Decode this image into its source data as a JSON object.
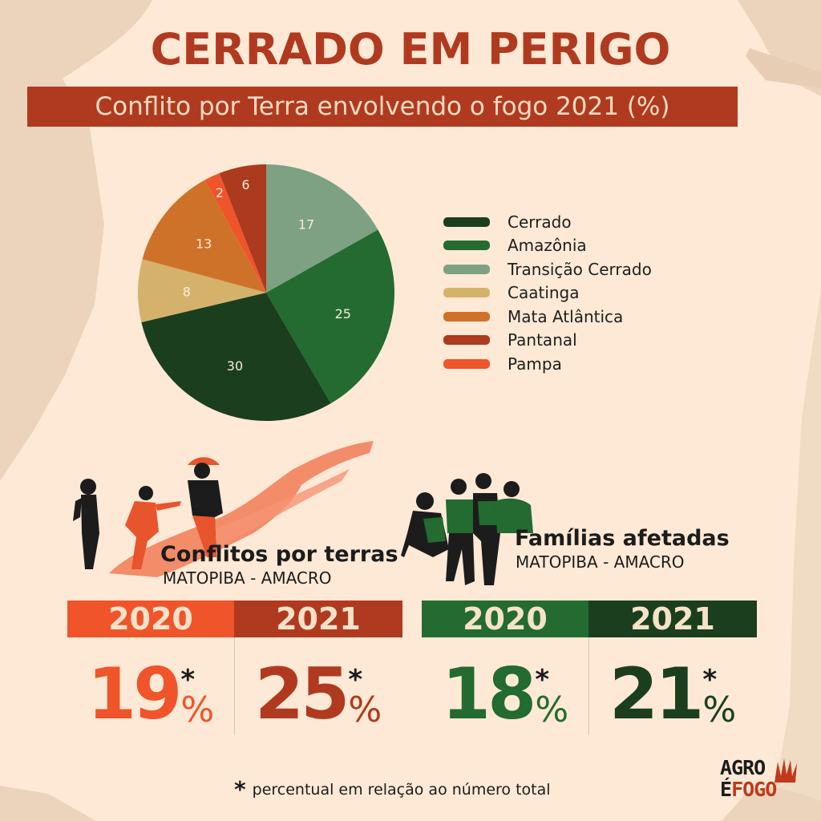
{
  "header": {
    "title": "CERRADO EM PERIGO",
    "subtitle": "Conflito por Terra envolvendo o fogo 2021 (%)"
  },
  "colors": {
    "background": "#fde9d5",
    "background_patch": "#ecd4bc",
    "title_red": "#b03a1f",
    "banner_text": "#f6dcc2",
    "orange_2020": "#f0542a",
    "red_2021": "#b03a1f",
    "green_2020": "#236b30",
    "green_2021": "#1b3f1e"
  },
  "chart_data": {
    "type": "pie",
    "title": "Conflito por Terra envolvendo o fogo 2021 (%)",
    "start_angle_deg": 0,
    "direction": "clockwise",
    "slices": [
      {
        "label": "Transição Cerrado",
        "value": 17,
        "color": "#7ea184"
      },
      {
        "label": "Amazônia",
        "value": 25,
        "color": "#236b30"
      },
      {
        "label": "Cerrado",
        "value": 30,
        "color": "#1b3f1e"
      },
      {
        "label": "Caatinga",
        "value": 8,
        "color": "#d5b26c"
      },
      {
        "label": "Mata Atlântica",
        "value": 13,
        "color": "#cf7229"
      },
      {
        "label": "Pampa",
        "value": 2,
        "color": "#f0542a"
      },
      {
        "label": "Pantanal",
        "value": 6,
        "color": "#ab3a1e"
      }
    ],
    "legend_position": "right",
    "legend": [
      {
        "label": "Cerrado",
        "color": "#1b3f1e"
      },
      {
        "label": "Amazônia",
        "color": "#236b30"
      },
      {
        "label": "Transição Cerrado",
        "color": "#7ea184"
      },
      {
        "label": "Caatinga",
        "color": "#d5b26c"
      },
      {
        "label": "Mata Atlântica",
        "color": "#cf7229"
      },
      {
        "label": "Pantanal",
        "color": "#ab3a1e"
      },
      {
        "label": "Pampa",
        "color": "#f0542a"
      }
    ]
  },
  "conflitos": {
    "title": "Conflitos por terras",
    "subtitle": "MATOPIBA - AMACRO",
    "years": [
      {
        "year": "2020",
        "value": "19",
        "asterisk": "*",
        "unit": "%",
        "color": "#f0542a"
      },
      {
        "year": "2021",
        "value": "25",
        "asterisk": "*",
        "unit": "%",
        "color": "#b03a1f"
      }
    ]
  },
  "familias": {
    "title": "Famílias afetadas",
    "subtitle": "MATOPIBA - AMACRO",
    "years": [
      {
        "year": "2020",
        "value": "18",
        "asterisk": "*",
        "unit": "%",
        "color": "#236b30"
      },
      {
        "year": "2021",
        "value": "21",
        "asterisk": "*",
        "unit": "%",
        "color": "#1b3f1e"
      }
    ]
  },
  "footnote": {
    "asterisk": "*",
    "text": "percentual em relação ao número total"
  },
  "logo": {
    "line1": "AGRO",
    "line2_e": "É",
    "line2_rest": "FOGO"
  }
}
